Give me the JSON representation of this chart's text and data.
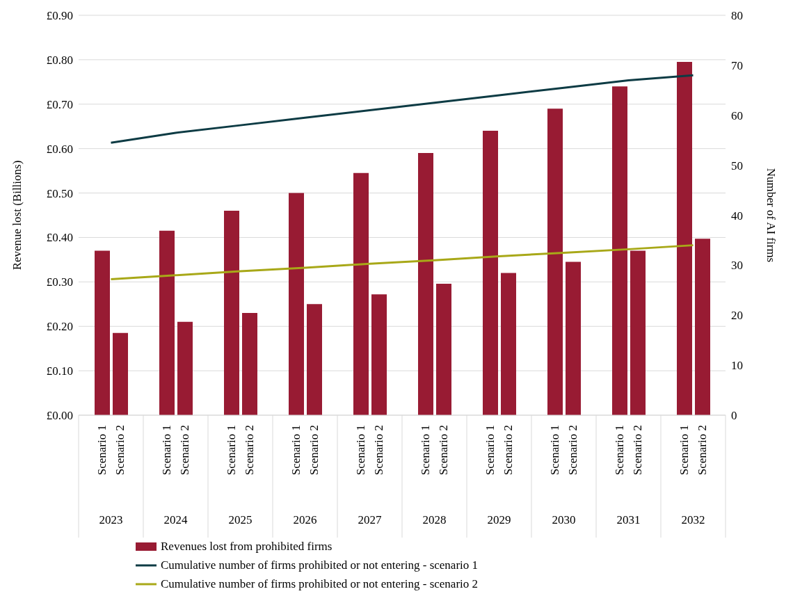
{
  "chart_data": {
    "type": "bar",
    "ylabel": "Revenue lost (Billions)",
    "y2label": "Number of AI firms",
    "categories": [
      "2023",
      "2024",
      "2025",
      "2026",
      "2027",
      "2028",
      "2029",
      "2030",
      "2031",
      "2032"
    ],
    "series": [
      {
        "name": "Revenues lost from prohibited firms",
        "color": "#981b33",
        "values": [
          0.37,
          0.415,
          0.46,
          0.5,
          0.545,
          0.59,
          0.64,
          0.69,
          0.74,
          0.795
        ]
      },
      {
        "color": "#981b33",
        "values": [
          0.185,
          0.21,
          0.23,
          0.25,
          0.272,
          0.296,
          0.32,
          0.345,
          0.37,
          0.397
        ]
      },
      {
        "type": "line",
        "axis": "y2",
        "name": "Cumulative number of firms prohibited or not entering - scenario 1",
        "color": "#0d3b44",
        "values": [
          54.5,
          56.5,
          58,
          59.5,
          61,
          62.5,
          64,
          65.5,
          67,
          68
        ]
      },
      {
        "type": "line",
        "axis": "y2",
        "name": "Cumulative number of firms prohibited or not entering - scenario 2",
        "color": "#a8a818",
        "values": [
          27.2,
          28,
          28.8,
          29.5,
          30.3,
          31,
          31.8,
          32.5,
          33.2,
          34
        ]
      }
    ],
    "ylim": [
      0,
      0.9
    ],
    "yticks": [
      {
        "value": 0,
        "label": "£0.00"
      },
      {
        "value": 0.1,
        "label": "£0.10"
      },
      {
        "value": 0.2,
        "label": "£0.20"
      },
      {
        "value": 0.3,
        "label": "£0.30"
      },
      {
        "value": 0.4,
        "label": "£0.40"
      },
      {
        "value": 0.5,
        "label": "£0.50"
      },
      {
        "value": 0.6,
        "label": "£0.60"
      },
      {
        "value": 0.7,
        "label": "£0.70"
      },
      {
        "value": 0.8,
        "label": "£0.80"
      },
      {
        "value": 0.9,
        "label": "£0.90"
      }
    ],
    "y2lim": [
      0,
      80
    ],
    "y2ticks": [
      0,
      10,
      20,
      30,
      40,
      50,
      60,
      70,
      80
    ],
    "annotations": [
      "Scenario 1",
      "Scenario 2",
      "Scenario 1",
      "Scenario 2",
      "Scenario 1",
      "Scenario 2",
      "Scenario 1",
      "Scenario 2",
      "Scenario 1",
      "Scenario 2",
      "Scenario 1",
      "Scenario 2",
      "Scenario 1",
      "Scenario 2",
      "Scenario 1",
      "Scenario 2",
      "Scenario 1",
      "Scenario 2",
      "Scenario 1",
      "Scenario 2"
    ],
    "grid": "y",
    "legend": "bottom",
    "marker": "none",
    "line_style": "solid"
  }
}
